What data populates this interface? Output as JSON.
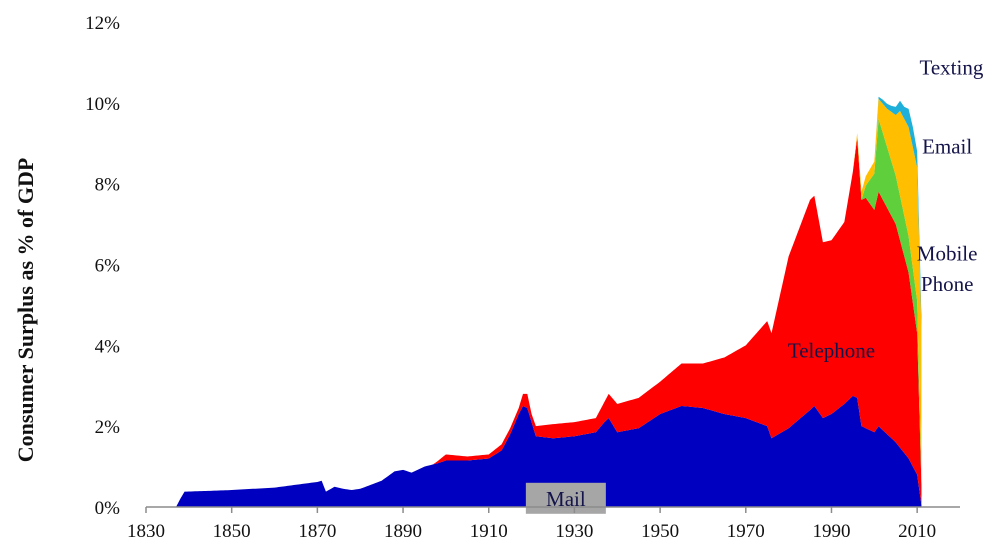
{
  "chart_data": {
    "type": "area",
    "stacked": true,
    "title": "",
    "xlabel": "",
    "ylabel": "Consumer Surplus as % of GDP",
    "xlim": [
      1830,
      2020
    ],
    "ylim": [
      0,
      12
    ],
    "x_ticks": [
      "1830",
      "1850",
      "1870",
      "1890",
      "1910",
      "1930",
      "1950",
      "1970",
      "1990",
      "2010"
    ],
    "y_ticks": [
      "0%",
      "2%",
      "4%",
      "6%",
      "8%",
      "10%",
      "12%"
    ],
    "grid": false,
    "legend": "inline labels",
    "series": [
      {
        "name": "Mail",
        "color": "#0000c0",
        "points": [
          [
            1830,
            0
          ],
          [
            1837,
            0
          ],
          [
            1838,
            0.2
          ],
          [
            1839,
            0.38
          ],
          [
            1845,
            0.4
          ],
          [
            1850,
            0.42
          ],
          [
            1855,
            0.45
          ],
          [
            1860,
            0.48
          ],
          [
            1865,
            0.55
          ],
          [
            1870,
            0.62
          ],
          [
            1871,
            0.65
          ],
          [
            1872,
            0.38
          ],
          [
            1874,
            0.5
          ],
          [
            1876,
            0.45
          ],
          [
            1878,
            0.42
          ],
          [
            1880,
            0.45
          ],
          [
            1885,
            0.65
          ],
          [
            1888,
            0.88
          ],
          [
            1890,
            0.92
          ],
          [
            1892,
            0.85
          ],
          [
            1895,
            1.0
          ],
          [
            1898,
            1.08
          ],
          [
            1900,
            1.15
          ],
          [
            1905,
            1.15
          ],
          [
            1910,
            1.2
          ],
          [
            1913,
            1.4
          ],
          [
            1915,
            1.8
          ],
          [
            1917,
            2.3
          ],
          [
            1918,
            2.5
          ],
          [
            1919,
            2.45
          ],
          [
            1920,
            2.1
          ],
          [
            1921,
            1.75
          ],
          [
            1925,
            1.7
          ],
          [
            1930,
            1.75
          ],
          [
            1935,
            1.85
          ],
          [
            1937,
            2.1
          ],
          [
            1938,
            2.2
          ],
          [
            1940,
            1.85
          ],
          [
            1945,
            1.95
          ],
          [
            1950,
            2.3
          ],
          [
            1955,
            2.5
          ],
          [
            1960,
            2.45
          ],
          [
            1965,
            2.3
          ],
          [
            1970,
            2.2
          ],
          [
            1975,
            2.0
          ],
          [
            1976,
            1.7
          ],
          [
            1980,
            1.95
          ],
          [
            1985,
            2.4
          ],
          [
            1986,
            2.5
          ],
          [
            1988,
            2.2
          ],
          [
            1990,
            2.3
          ],
          [
            1993,
            2.55
          ],
          [
            1995,
            2.75
          ],
          [
            1996,
            2.7
          ],
          [
            1997,
            2.0
          ],
          [
            2000,
            1.85
          ],
          [
            2001,
            2.0
          ],
          [
            2005,
            1.6
          ],
          [
            2008,
            1.2
          ],
          [
            2010,
            0.8
          ],
          [
            2011,
            0.05
          ]
        ]
      },
      {
        "name": "Telephone",
        "color": "#ff0000",
        "points": [
          [
            1897,
            0
          ],
          [
            1898,
            0.05
          ],
          [
            1900,
            0.15
          ],
          [
            1905,
            0.1
          ],
          [
            1910,
            0.1
          ],
          [
            1913,
            0.15
          ],
          [
            1917,
            0.15
          ],
          [
            1918,
            0.3
          ],
          [
            1919,
            0.35
          ],
          [
            1920,
            0.2
          ],
          [
            1921,
            0.25
          ],
          [
            1925,
            0.35
          ],
          [
            1930,
            0.35
          ],
          [
            1935,
            0.35
          ],
          [
            1937,
            0.5
          ],
          [
            1938,
            0.6
          ],
          [
            1940,
            0.7
          ],
          [
            1945,
            0.75
          ],
          [
            1950,
            0.8
          ],
          [
            1955,
            1.05
          ],
          [
            1960,
            1.1
          ],
          [
            1965,
            1.4
          ],
          [
            1970,
            1.8
          ],
          [
            1975,
            2.6
          ],
          [
            1976,
            2.6
          ],
          [
            1980,
            4.25
          ],
          [
            1985,
            5.2
          ],
          [
            1986,
            5.2
          ],
          [
            1988,
            4.35
          ],
          [
            1990,
            4.3
          ],
          [
            1993,
            4.5
          ],
          [
            1995,
            5.55
          ],
          [
            1996,
            6.45
          ],
          [
            1997,
            5.6
          ],
          [
            1998,
            5.7
          ],
          [
            2000,
            5.5
          ],
          [
            2001,
            5.8
          ],
          [
            2005,
            5.4
          ],
          [
            2008,
            4.6
          ],
          [
            2010,
            3.5
          ],
          [
            2011,
            0.5
          ]
        ]
      },
      {
        "name": "Mobile Phone",
        "color": "#5fcf3c",
        "points": [
          [
            1997,
            0
          ],
          [
            1998,
            0.3
          ],
          [
            2000,
            0.9
          ],
          [
            2001,
            1.8
          ],
          [
            2003,
            1.5
          ],
          [
            2005,
            1.2
          ],
          [
            2008,
            0.9
          ],
          [
            2010,
            0.8
          ],
          [
            2011,
            0.2
          ]
        ]
      },
      {
        "name": "Email",
        "color": "#ffbf00",
        "points": [
          [
            1995,
            0
          ],
          [
            1996,
            0.1
          ],
          [
            1997,
            0.2
          ],
          [
            2000,
            0.3
          ],
          [
            2001,
            0.5
          ],
          [
            2003,
            0.95
          ],
          [
            2005,
            1.5
          ],
          [
            2006,
            2.1
          ],
          [
            2007,
            2.4
          ],
          [
            2008,
            2.7
          ],
          [
            2010,
            3.3
          ],
          [
            2011,
            3.6
          ]
        ]
      },
      {
        "name": "Texting",
        "color": "#1eb0d8",
        "points": [
          [
            2000,
            0
          ],
          [
            2001,
            0.05
          ],
          [
            2002,
            0.1
          ],
          [
            2004,
            0.15
          ],
          [
            2005,
            0.2
          ],
          [
            2006,
            0.25
          ],
          [
            2007,
            0.3
          ],
          [
            2008,
            0.45
          ],
          [
            2009,
            0.5
          ],
          [
            2010,
            0.4
          ],
          [
            2011,
            0.35
          ]
        ]
      }
    ],
    "annotations": [
      {
        "text": "Mail",
        "x": 1928,
        "y": 0.5,
        "boxed": true,
        "box_color": "#a6a6a6"
      },
      {
        "text": "Telephone",
        "x": 1990,
        "y": 3.7
      },
      {
        "text": "Mobile",
        "x": 2017,
        "y": 6.1
      },
      {
        "text": "Phone",
        "x": 2017,
        "y": 5.35
      },
      {
        "text": "Email",
        "x": 2017,
        "y": 8.75
      },
      {
        "text": "Texting",
        "x": 2018,
        "y": 10.7
      }
    ]
  }
}
